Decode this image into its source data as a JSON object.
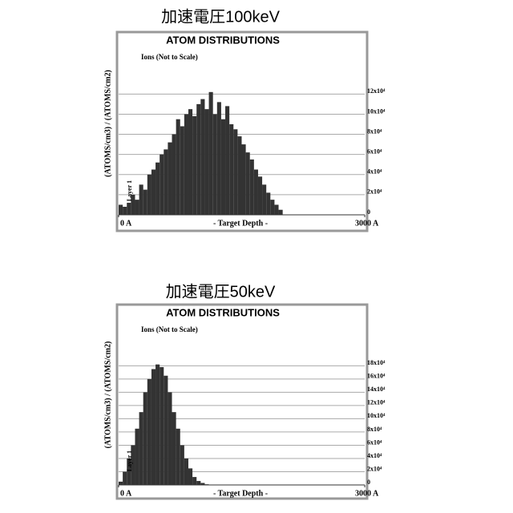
{
  "chart_data": [
    {
      "type": "histogram",
      "heading": "加速電圧100keV",
      "title": "ATOM DISTRIBUTIONS",
      "subtitle": "Ions (Not to Scale)",
      "y_label": "(ATOMS/cm3) / (ATOMS/cm2)",
      "x_label": "- Target Depth -",
      "annotation": "Layer 1",
      "bins": [
        0,
        50,
        100,
        150,
        200,
        250,
        300,
        350,
        400,
        450,
        500,
        550,
        600,
        650,
        700,
        750,
        800,
        850,
        900,
        950,
        1000,
        1050,
        1100,
        1150,
        1200,
        1250,
        1300,
        1350,
        1400,
        1450,
        1500,
        1550,
        1600,
        1650,
        1700,
        1750,
        1800,
        1850,
        1900,
        1950,
        2000
      ],
      "counts": [
        10000,
        8000,
        12000,
        20000,
        15000,
        30000,
        25000,
        40000,
        45000,
        52000,
        60000,
        65000,
        72000,
        80000,
        95000,
        88000,
        100000,
        105000,
        98000,
        110000,
        115000,
        105000,
        122000,
        100000,
        112000,
        95000,
        108000,
        90000,
        85000,
        78000,
        70000,
        62000,
        55000,
        45000,
        38000,
        30000,
        22000,
        15000,
        10000,
        5000
      ],
      "color": "#333333",
      "xlim": [
        0,
        3000
      ],
      "xticks": [
        {
          "value": 0,
          "label": "0 A"
        },
        {
          "value": 3000,
          "label": "3000 A"
        }
      ],
      "ylim": [
        0,
        180000
      ],
      "yticks": [
        0,
        {
          "value": 20000,
          "label": "2x10⁴"
        },
        {
          "value": 40000,
          "label": "4x10⁴"
        },
        {
          "value": 60000,
          "label": "6x10⁴"
        },
        {
          "value": 80000,
          "label": "8x10⁴"
        },
        {
          "value": 100000,
          "label": "10x10⁴"
        },
        {
          "value": 120000,
          "label": "12x10⁴"
        }
      ],
      "grid": true
    },
    {
      "type": "histogram",
      "heading": "加速電圧50keV",
      "title": "ATOM DISTRIBUTIONS",
      "subtitle": "Ions (Not to Scale)",
      "y_label": "(ATOMS/cm3) / (ATOMS/cm2)",
      "x_label": "- Target Depth -",
      "annotation": "Layer 1",
      "bins": [
        0,
        50,
        100,
        150,
        200,
        250,
        300,
        350,
        400,
        450,
        500,
        550,
        600,
        650,
        700,
        750,
        800,
        850,
        900,
        950,
        1000,
        1050,
        1100
      ],
      "counts": [
        5000,
        20000,
        40000,
        60000,
        85000,
        110000,
        140000,
        160000,
        175000,
        182000,
        178000,
        165000,
        140000,
        110000,
        85000,
        60000,
        40000,
        25000,
        12000,
        6000,
        3000,
        1000
      ],
      "color": "#333333",
      "xlim": [
        0,
        3000
      ],
      "xticks": [
        {
          "value": 0,
          "label": "0 A"
        },
        {
          "value": 3000,
          "label": "3000 A"
        }
      ],
      "ylim": [
        0,
        270000
      ],
      "yticks": [
        0,
        {
          "value": 20000,
          "label": "2x10⁴"
        },
        {
          "value": 40000,
          "label": "4x10⁴"
        },
        {
          "value": 60000,
          "label": "6x10⁴"
        },
        {
          "value": 80000,
          "label": "8x10⁴"
        },
        {
          "value": 100000,
          "label": "10x10⁴"
        },
        {
          "value": 120000,
          "label": "12x10⁴"
        },
        {
          "value": 140000,
          "label": "14x10⁴"
        },
        {
          "value": 160000,
          "label": "16x10⁴"
        },
        {
          "value": 180000,
          "label": "18x10⁴"
        }
      ],
      "grid": true
    }
  ]
}
